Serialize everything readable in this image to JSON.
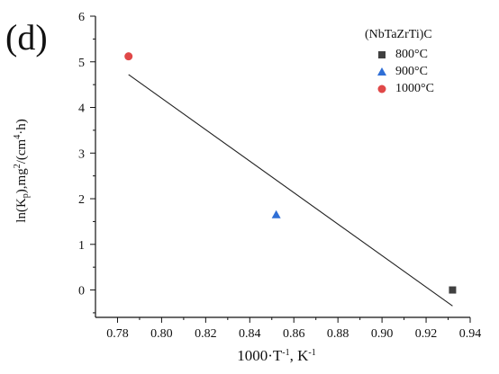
{
  "panel_label": "(d)",
  "chart_data": {
    "type": "scatter",
    "xlabel": "1000·T^-1, K^-1",
    "ylabel": "ln(K_p),mg^2/(cm^4·h)",
    "xlim": [
      0.77,
      0.94
    ],
    "ylim": [
      -0.6,
      6
    ],
    "xticks": [
      "0.78",
      "0.80",
      "0.82",
      "0.84",
      "0.86",
      "0.88",
      "0.90",
      "0.92",
      "0.94"
    ],
    "yticks": [
      "0",
      "1",
      "2",
      "3",
      "4",
      "5",
      "6"
    ],
    "legend_title": "(NbTaZrTi)C",
    "legend_position": "top-right",
    "series": [
      {
        "name": "800°C",
        "marker": "square",
        "color": "#404040",
        "x": [
          0.932
        ],
        "y": [
          0.0
        ]
      },
      {
        "name": "900°C",
        "marker": "triangle",
        "color": "#2f6fd6",
        "x": [
          0.852
        ],
        "y": [
          1.65
        ]
      },
      {
        "name": "1000°C",
        "marker": "circle",
        "color": "#e04848",
        "x": [
          0.785
        ],
        "y": [
          5.12
        ]
      }
    ],
    "fit_line": {
      "x": [
        0.785,
        0.932
      ],
      "y": [
        4.72,
        -0.35
      ]
    }
  }
}
